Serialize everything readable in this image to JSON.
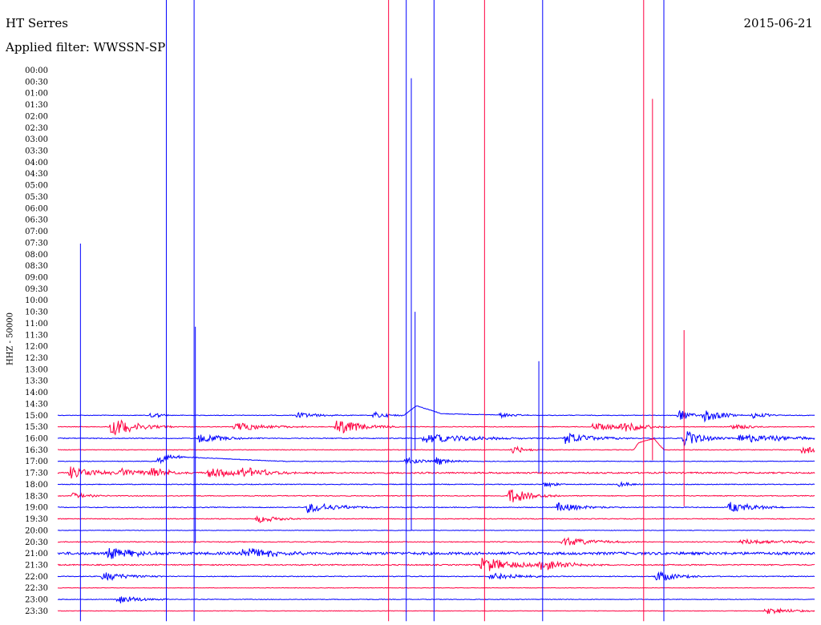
{
  "header": {
    "station": "HT Serres",
    "filter": "Applied filter: WWSSN-SP",
    "date": "2015-06-21"
  },
  "chart_data": {
    "type": "line",
    "title": "HT Serres",
    "subtitle": "Applied filter: WWSSN-SP",
    "ylabel": "HHZ - 50000",
    "colors": {
      "even_row": "#0000ff",
      "odd_row": "#ff0040"
    },
    "row_labels": [
      "00:00",
      "00:30",
      "01:00",
      "01:30",
      "02:00",
      "02:30",
      "03:00",
      "03:30",
      "04:00",
      "04:30",
      "05:00",
      "05:30",
      "06:00",
      "06:30",
      "07:00",
      "07:30",
      "08:00",
      "08:30",
      "09:00",
      "09:30",
      "10:00",
      "10:30",
      "11:00",
      "11:30",
      "12:00",
      "12:30",
      "13:00",
      "13:30",
      "14:00",
      "14:30",
      "15:00",
      "15:30",
      "16:00",
      "16:30",
      "17:00",
      "17:30",
      "18:00",
      "18:30",
      "19:00",
      "19:30",
      "20:00",
      "20:30",
      "21:00",
      "21:30",
      "22:00",
      "22:30",
      "23:00",
      "23:30"
    ],
    "trace_rows": [
      {
        "label": "15:00",
        "color": "#0000ff",
        "start_min": 0,
        "end_min": 30,
        "noise": 0.4,
        "bursts": [
          {
            "t": 3.7,
            "amp": 6,
            "dur": 0.3
          },
          {
            "t": 9.5,
            "amp": 4,
            "dur": 0.8
          },
          {
            "t": 12.5,
            "amp": 5,
            "dur": 0.5
          },
          {
            "t": 17.5,
            "amp": 4,
            "dur": 0.5
          },
          {
            "t": 24.6,
            "amp": 8,
            "dur": 0.4
          },
          {
            "t": 25.6,
            "amp": 10,
            "dur": 0.6
          },
          {
            "t": 27.5,
            "amp": 5,
            "dur": 0.5
          }
        ],
        "drift": [
          {
            "t": 0,
            "v": 0
          },
          {
            "t": 13.7,
            "v": 0
          },
          {
            "t": 14.2,
            "v": 12
          },
          {
            "t": 15.2,
            "v": 2
          },
          {
            "t": 18,
            "v": 0
          }
        ]
      },
      {
        "label": "15:30",
        "color": "#ff0040",
        "start_min": 0,
        "end_min": 30,
        "noise": 0.4,
        "bursts": [
          {
            "t": 2.1,
            "amp": 12,
            "dur": 1.0
          },
          {
            "t": 7.0,
            "amp": 6,
            "dur": 1.2
          },
          {
            "t": 11.0,
            "amp": 10,
            "dur": 1.0
          },
          {
            "t": 21.2,
            "amp": 5,
            "dur": 1.2
          },
          {
            "t": 22.3,
            "amp": 7,
            "dur": 0.8
          },
          {
            "t": 26.7,
            "amp": 5,
            "dur": 0.6
          }
        ],
        "drift": []
      },
      {
        "label": "16:00",
        "color": "#0000ff",
        "start_min": 0,
        "end_min": 30,
        "noise": 0.5,
        "bursts": [
          {
            "t": 5.6,
            "amp": 6,
            "dur": 1.0
          },
          {
            "t": 14.5,
            "amp": 6,
            "dur": 2.0
          },
          {
            "t": 20.1,
            "amp": 8,
            "dur": 1.0
          },
          {
            "t": 24.8,
            "amp": 10,
            "dur": 0.8
          },
          {
            "t": 27.0,
            "amp": 6,
            "dur": 2.0
          }
        ],
        "drift": []
      },
      {
        "label": "16:30",
        "color": "#ff0040",
        "start_min": 0,
        "end_min": 30,
        "noise": 0.4,
        "bursts": [
          {
            "t": 18.0,
            "amp": 6,
            "dur": 0.5
          },
          {
            "t": 29.5,
            "amp": 6,
            "dur": 0.5
          }
        ],
        "drift": [
          {
            "t": 0,
            "v": 0
          },
          {
            "t": 22.8,
            "v": 0
          },
          {
            "t": 23.0,
            "v": 9
          },
          {
            "t": 23.6,
            "v": 14
          },
          {
            "t": 24.0,
            "v": 0
          }
        ]
      },
      {
        "label": "17:00",
        "color": "#0000ff",
        "start_min": 0,
        "end_min": 30,
        "noise": 0.4,
        "bursts": [
          {
            "t": 4.0,
            "amp": 6,
            "dur": 0.6
          },
          {
            "t": 13.8,
            "amp": 5,
            "dur": 0.6
          },
          {
            "t": 15.0,
            "amp": 5,
            "dur": 0.6
          }
        ],
        "drift": [
          {
            "t": 0,
            "v": 0
          },
          {
            "t": 4.0,
            "v": 0
          },
          {
            "t": 4.5,
            "v": 6
          },
          {
            "t": 6.7,
            "v": 3
          },
          {
            "t": 9,
            "v": 0
          }
        ]
      },
      {
        "label": "17:30",
        "color": "#ff0040",
        "start_min": 0,
        "end_min": 30,
        "noise": 0.9,
        "bursts": [
          {
            "t": 0.5,
            "amp": 8,
            "dur": 1.0
          },
          {
            "t": 2.5,
            "amp": 6,
            "dur": 1.0
          },
          {
            "t": 3.7,
            "amp": 6,
            "dur": 0.8
          },
          {
            "t": 6.0,
            "amp": 7,
            "dur": 1.0
          },
          {
            "t": 7.2,
            "amp": 7,
            "dur": 1.2
          }
        ],
        "drift": []
      },
      {
        "label": "18:00",
        "color": "#0000ff",
        "start_min": 0,
        "end_min": 30,
        "noise": 0.5,
        "bursts": [
          {
            "t": 19.3,
            "amp": 4,
            "dur": 0.4
          },
          {
            "t": 22.2,
            "amp": 4,
            "dur": 0.4
          }
        ],
        "drift": []
      },
      {
        "label": "18:30",
        "color": "#ff0040",
        "start_min": 0,
        "end_min": 30,
        "noise": 0.5,
        "bursts": [
          {
            "t": 0.6,
            "amp": 4,
            "dur": 0.6
          },
          {
            "t": 17.9,
            "amp": 10,
            "dur": 0.8
          }
        ],
        "drift": []
      },
      {
        "label": "19:00",
        "color": "#0000ff",
        "start_min": 0,
        "end_min": 30,
        "noise": 0.5,
        "bursts": [
          {
            "t": 9.9,
            "amp": 7,
            "dur": 1.2
          },
          {
            "t": 19.8,
            "amp": 6,
            "dur": 1.0
          },
          {
            "t": 26.6,
            "amp": 7,
            "dur": 1.0
          }
        ],
        "drift": []
      },
      {
        "label": "19:30",
        "color": "#ff0040",
        "start_min": 0,
        "end_min": 30,
        "noise": 0.5,
        "bursts": [
          {
            "t": 7.9,
            "amp": 5,
            "dur": 0.8
          }
        ],
        "drift": []
      },
      {
        "label": "20:00",
        "color": "#0000ff",
        "start_min": 0,
        "end_min": 30,
        "noise": 0.3,
        "bursts": [],
        "drift": []
      },
      {
        "label": "20:30",
        "color": "#ff0040",
        "start_min": 0,
        "end_min": 30,
        "noise": 0.5,
        "bursts": [
          {
            "t": 20.0,
            "amp": 6,
            "dur": 1.2
          },
          {
            "t": 27.0,
            "amp": 3,
            "dur": 3.0
          }
        ],
        "drift": []
      },
      {
        "label": "21:00",
        "color": "#0000ff",
        "start_min": 0,
        "end_min": 30,
        "noise": 1.6,
        "bursts": [
          {
            "t": 2.0,
            "amp": 8,
            "dur": 1.0
          },
          {
            "t": 7.3,
            "amp": 9,
            "dur": 1.0
          }
        ],
        "drift": []
      },
      {
        "label": "21:30",
        "color": "#ff0040",
        "start_min": 0,
        "end_min": 30,
        "noise": 0.7,
        "bursts": [
          {
            "t": 16.8,
            "amp": 10,
            "dur": 1.2
          },
          {
            "t": 19.1,
            "amp": 8,
            "dur": 1.0
          }
        ],
        "drift": []
      },
      {
        "label": "22:00",
        "color": "#0000ff",
        "start_min": 0,
        "end_min": 30,
        "noise": 0.5,
        "bursts": [
          {
            "t": 1.8,
            "amp": 6,
            "dur": 1.0
          },
          {
            "t": 17.1,
            "amp": 6,
            "dur": 1.0
          },
          {
            "t": 23.7,
            "amp": 7,
            "dur": 0.8
          }
        ],
        "drift": []
      },
      {
        "label": "22:30",
        "color": "#ff0040",
        "start_min": 0,
        "end_min": 30,
        "noise": 0.3,
        "bursts": [],
        "drift": []
      },
      {
        "label": "23:00",
        "color": "#0000ff",
        "start_min": 0,
        "end_min": 30,
        "noise": 0.4,
        "bursts": [
          {
            "t": 2.4,
            "amp": 6,
            "dur": 0.8
          }
        ],
        "drift": []
      },
      {
        "label": "23:30",
        "color": "#ff0040",
        "start_min": 0,
        "end_min": 30,
        "noise": 0.3,
        "bursts": [
          {
            "t": 28.0,
            "amp": 4,
            "dur": 1.2
          }
        ],
        "drift": []
      }
    ],
    "spikes": [
      {
        "row": "15:00",
        "t": 0.9,
        "color": "#0000ff",
        "top_row_frac": 15.08,
        "bottom_frac": 47.9
      },
      {
        "row": "15:00",
        "t": 4.3,
        "color": "#0000ff",
        "top_row_frac": -1,
        "bottom_frac": 47.9
      },
      {
        "row": "15:00",
        "t": 5.4,
        "color": "#0000ff",
        "top_row_frac": -1,
        "bottom_frac": 47.9
      },
      {
        "row": "15:00",
        "t": 5.45,
        "color": "#0000ff",
        "top_row_frac": 22.3,
        "bottom_frac": 41.1
      },
      {
        "row": "15:30",
        "t": 13.1,
        "color": "#ff0040",
        "top_row_frac": -1,
        "bottom_frac": 47.9
      },
      {
        "row": "15:00",
        "t": 13.8,
        "color": "#0000ff",
        "top_row_frac": -1,
        "bottom_frac": 47.9
      },
      {
        "row": "15:00",
        "t": 14.0,
        "color": "#0000ff",
        "top_row_frac": 18.6,
        "bottom_frac": 40.0
      },
      {
        "row": "15:00",
        "t": 14.15,
        "color": "#0000ff",
        "top_row_frac": 21.0,
        "bottom_frac": 33.0
      },
      {
        "row": "15:00",
        "t": 14.0,
        "color": "#0000ff",
        "top_row_frac": 0.7,
        "bottom_frac": 34.0
      },
      {
        "row": "15:00",
        "t": 14.9,
        "color": "#0000ff",
        "top_row_frac": -1,
        "bottom_frac": 47.9
      },
      {
        "row": "15:30",
        "t": 16.9,
        "color": "#ff0040",
        "top_row_frac": -1,
        "bottom_frac": 47.9
      },
      {
        "row": "15:00",
        "t": 19.2,
        "color": "#0000ff",
        "top_row_frac": -1,
        "bottom_frac": 47.9
      },
      {
        "row": "15:00",
        "t": 19.05,
        "color": "#0000ff",
        "top_row_frac": 25.3,
        "bottom_frac": 35.0
      },
      {
        "row": "15:30",
        "t": 23.2,
        "color": "#ff0040",
        "top_row_frac": -1,
        "bottom_frac": 47.9
      },
      {
        "row": "15:30",
        "t": 23.55,
        "color": "#ff0040",
        "top_row_frac": 2.5,
        "bottom_frac": 33.9
      },
      {
        "row": "15:00",
        "t": 24.0,
        "color": "#0000ff",
        "top_row_frac": -1,
        "bottom_frac": 47.9
      },
      {
        "row": "15:30",
        "t": 24.8,
        "color": "#ff0040",
        "top_row_frac": 22.6,
        "bottom_frac": 37.9
      }
    ],
    "x": {
      "minutes_per_row": 30
    },
    "grid": false,
    "legend": "none"
  }
}
